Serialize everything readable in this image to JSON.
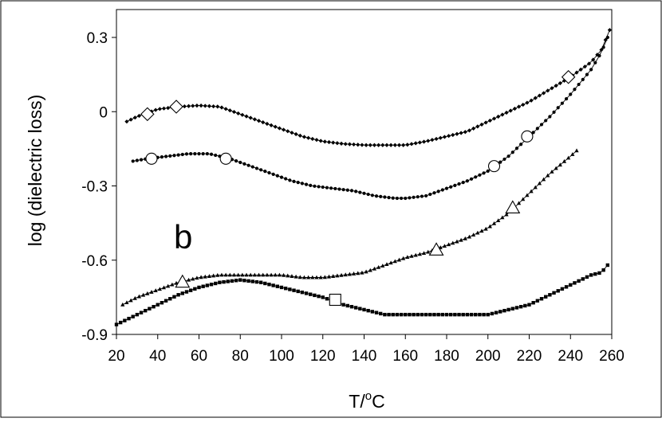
{
  "chart_data": {
    "type": "scatter",
    "title": "",
    "panel_label": "b",
    "xlabel_main": "T/",
    "xlabel_sup": "o",
    "xlabel_unit": "C",
    "ylabel": "log (dielectric loss)",
    "xlim": [
      20,
      260
    ],
    "ylim": [
      -0.9,
      0.35
    ],
    "x_ticks": [
      "20",
      "40",
      "60",
      "80",
      "100",
      "120",
      "140",
      "160",
      "180",
      "200",
      "220",
      "240",
      "260"
    ],
    "y_ticks": [
      {
        "value": 0.3,
        "label": "0.3"
      },
      {
        "value": 0,
        "label": "0"
      },
      {
        "value": -0.3,
        "label": "-0.3"
      },
      {
        "value": -0.6,
        "label": "-0.6"
      },
      {
        "value": -0.9,
        "label": "-0.9"
      }
    ],
    "grid": false,
    "series": [
      {
        "marker": "diamond",
        "color": "#000000",
        "x_range": [
          25,
          259
        ],
        "knots": [
          [
            25,
            -0.04
          ],
          [
            30,
            -0.02
          ],
          [
            40,
            0.01
          ],
          [
            50,
            0.02
          ],
          [
            60,
            0.025
          ],
          [
            70,
            0.02
          ],
          [
            80,
            -0.01
          ],
          [
            90,
            -0.04
          ],
          [
            100,
            -0.07
          ],
          [
            110,
            -0.1
          ],
          [
            120,
            -0.12
          ],
          [
            130,
            -0.13
          ],
          [
            140,
            -0.135
          ],
          [
            150,
            -0.135
          ],
          [
            160,
            -0.135
          ],
          [
            170,
            -0.12
          ],
          [
            180,
            -0.1
          ],
          [
            190,
            -0.08
          ],
          [
            200,
            -0.04
          ],
          [
            210,
            0
          ],
          [
            220,
            0.04
          ],
          [
            230,
            0.09
          ],
          [
            240,
            0.14
          ],
          [
            250,
            0.2
          ],
          [
            255,
            0.25
          ],
          [
            259,
            0.33
          ]
        ],
        "open_markers": [
          [
            35,
            -0.01
          ],
          [
            49,
            0.02
          ],
          [
            239,
            0.14
          ]
        ]
      },
      {
        "marker": "circle",
        "color": "#000000",
        "x_range": [
          28,
          258
        ],
        "knots": [
          [
            28,
            -0.2
          ],
          [
            35,
            -0.19
          ],
          [
            45,
            -0.18
          ],
          [
            55,
            -0.17
          ],
          [
            65,
            -0.17
          ],
          [
            75,
            -0.19
          ],
          [
            85,
            -0.22
          ],
          [
            95,
            -0.25
          ],
          [
            105,
            -0.28
          ],
          [
            115,
            -0.3
          ],
          [
            125,
            -0.31
          ],
          [
            135,
            -0.32
          ],
          [
            145,
            -0.34
          ],
          [
            155,
            -0.35
          ],
          [
            160,
            -0.35
          ],
          [
            170,
            -0.34
          ],
          [
            180,
            -0.31
          ],
          [
            190,
            -0.28
          ],
          [
            200,
            -0.24
          ],
          [
            210,
            -0.18
          ],
          [
            220,
            -0.1
          ],
          [
            230,
            -0.02
          ],
          [
            240,
            0.07
          ],
          [
            250,
            0.17
          ],
          [
            255,
            0.24
          ],
          [
            258,
            0.3
          ]
        ],
        "open_markers": [
          [
            37,
            -0.19
          ],
          [
            73,
            -0.19
          ],
          [
            203,
            -0.22
          ],
          [
            219,
            -0.1
          ]
        ]
      },
      {
        "marker": "triangle",
        "color": "#000000",
        "x_range": [
          23,
          244
        ],
        "knots": [
          [
            23,
            -0.78
          ],
          [
            30,
            -0.75
          ],
          [
            40,
            -0.72
          ],
          [
            50,
            -0.69
          ],
          [
            60,
            -0.67
          ],
          [
            70,
            -0.66
          ],
          [
            80,
            -0.66
          ],
          [
            90,
            -0.66
          ],
          [
            100,
            -0.66
          ],
          [
            110,
            -0.67
          ],
          [
            120,
            -0.67
          ],
          [
            130,
            -0.66
          ],
          [
            140,
            -0.65
          ],
          [
            150,
            -0.62
          ],
          [
            160,
            -0.59
          ],
          [
            170,
            -0.57
          ],
          [
            180,
            -0.54
          ],
          [
            190,
            -0.51
          ],
          [
            200,
            -0.47
          ],
          [
            210,
            -0.41
          ],
          [
            220,
            -0.33
          ],
          [
            230,
            -0.25
          ],
          [
            240,
            -0.18
          ],
          [
            244,
            -0.15
          ]
        ],
        "open_markers": [
          [
            52,
            -0.69
          ],
          [
            175,
            -0.56
          ],
          [
            212,
            -0.39
          ]
        ]
      },
      {
        "marker": "square",
        "color": "#000000",
        "x_range": [
          20,
          259
        ],
        "knots": [
          [
            20,
            -0.86
          ],
          [
            30,
            -0.82
          ],
          [
            40,
            -0.78
          ],
          [
            50,
            -0.74
          ],
          [
            60,
            -0.71
          ],
          [
            70,
            -0.69
          ],
          [
            80,
            -0.68
          ],
          [
            90,
            -0.69
          ],
          [
            100,
            -0.71
          ],
          [
            110,
            -0.73
          ],
          [
            120,
            -0.75
          ],
          [
            130,
            -0.78
          ],
          [
            140,
            -0.8
          ],
          [
            150,
            -0.82
          ],
          [
            160,
            -0.82
          ],
          [
            170,
            -0.82
          ],
          [
            180,
            -0.82
          ],
          [
            190,
            -0.82
          ],
          [
            200,
            -0.82
          ],
          [
            210,
            -0.8
          ],
          [
            220,
            -0.78
          ],
          [
            230,
            -0.74
          ],
          [
            240,
            -0.7
          ],
          [
            250,
            -0.66
          ],
          [
            255,
            -0.65
          ],
          [
            259,
            -0.61
          ]
        ],
        "open_markers": [
          [
            126,
            -0.76
          ]
        ]
      }
    ]
  }
}
